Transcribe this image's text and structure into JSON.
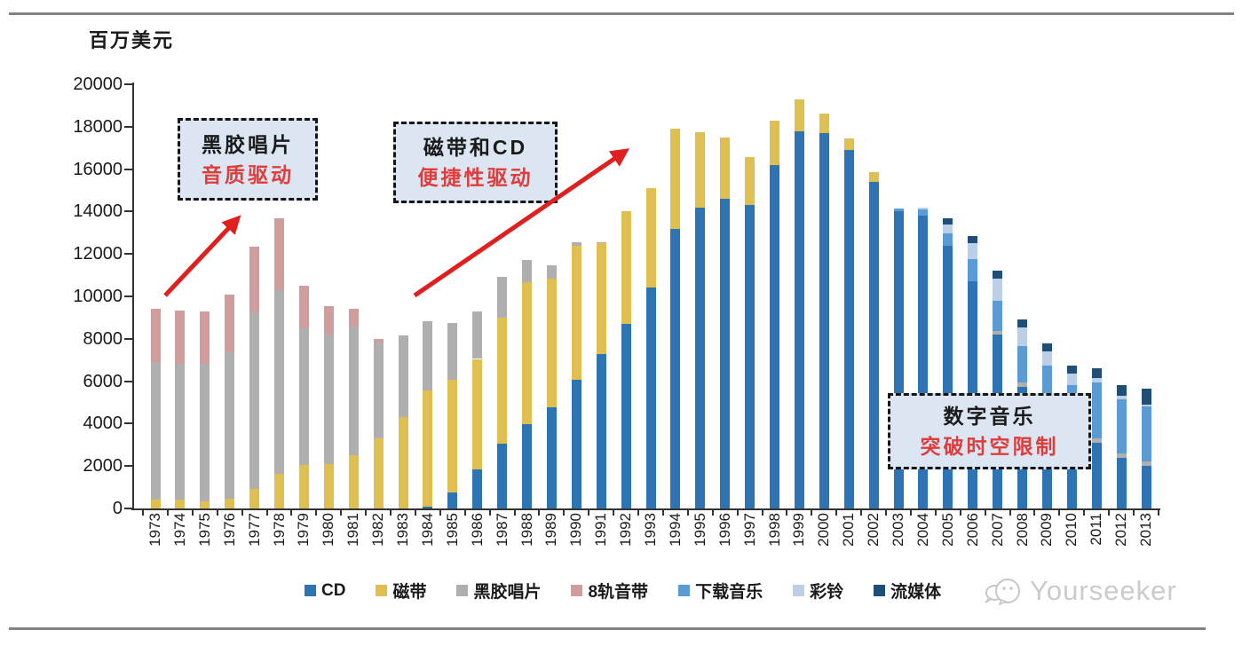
{
  "page": {
    "y_axis_unit": "百万美元",
    "watermark": "Yourseeker"
  },
  "annotations": [
    {
      "line1": "黑胶唱片",
      "line2": "音质驱动"
    },
    {
      "line1": "磁带和CD",
      "line2": "便捷性驱动"
    },
    {
      "line1": "数字音乐",
      "line2": "突破时空限制"
    }
  ],
  "colors": {
    "arrow_red": "#e01f1f",
    "annotation_fill": "#dce6f2",
    "annotation_text_red": "#e03c3c",
    "axis": "#333333",
    "rule_gray": "#828282",
    "watermark_gray": "#cbcbcb"
  },
  "chart_data": {
    "type": "bar",
    "stacked": true,
    "title": "",
    "xlabel": "",
    "ylabel": "百万美元",
    "ylim": [
      0,
      20000
    ],
    "yticks": [
      0,
      2000,
      4000,
      6000,
      8000,
      10000,
      12000,
      14000,
      16000,
      18000,
      20000
    ],
    "grid": false,
    "legend_position": "bottom",
    "categories": [
      1973,
      1974,
      1975,
      1976,
      1977,
      1978,
      1979,
      1980,
      1981,
      1982,
      1983,
      1984,
      1985,
      1986,
      1987,
      1988,
      1989,
      1990,
      1991,
      1992,
      1993,
      1994,
      1995,
      1996,
      1997,
      1998,
      1999,
      2000,
      2001,
      2002,
      2003,
      2004,
      2005,
      2006,
      2007,
      2008,
      2009,
      2010,
      2011,
      2012,
      2013
    ],
    "series": [
      {
        "name": "CD",
        "color": "#2E74B5",
        "values": [
          0,
          0,
          0,
          0,
          0,
          0,
          0,
          0,
          0,
          0,
          0,
          100,
          750,
          1850,
          3050,
          3970,
          4750,
          6050,
          7300,
          8700,
          10400,
          13200,
          14200,
          14600,
          14300,
          16200,
          17800,
          17700,
          16900,
          15400,
          14000,
          13800,
          12400,
          10700,
          8200,
          5750,
          4800,
          4000,
          3100,
          2400,
          2000
        ]
      },
      {
        "name": "磁带",
        "color": "#DFBF4F",
        "values": [
          400,
          400,
          350,
          450,
          900,
          1650,
          2050,
          2100,
          2500,
          3300,
          4300,
          5450,
          5300,
          5200,
          5950,
          6700,
          6100,
          6350,
          5200,
          5300,
          4700,
          4700,
          3550,
          2900,
          2250,
          2100,
          1500,
          900,
          550,
          450,
          0,
          0,
          0,
          0,
          0,
          0,
          0,
          0,
          0,
          0,
          0
        ]
      },
      {
        "name": "黑胶唱片",
        "color": "#AFAFAF",
        "values": [
          6500,
          6400,
          6450,
          6930,
          8350,
          8650,
          6450,
          6100,
          6080,
          4530,
          3840,
          3260,
          2700,
          2250,
          1900,
          1030,
          600,
          150,
          50,
          0,
          0,
          0,
          0,
          0,
          0,
          0,
          0,
          0,
          0,
          0,
          0,
          0,
          0,
          0,
          150,
          200,
          150,
          150,
          200,
          200,
          200
        ]
      },
      {
        "name": "8轨音带",
        "color": "#D09C9C",
        "values": [
          2500,
          2520,
          2490,
          2690,
          3100,
          3390,
          2000,
          1320,
          830,
          170,
          0,
          0,
          0,
          0,
          0,
          0,
          0,
          0,
          0,
          0,
          0,
          0,
          0,
          0,
          0,
          0,
          0,
          0,
          0,
          0,
          0,
          0,
          0,
          0,
          0,
          0,
          0,
          0,
          0,
          0,
          0
        ]
      },
      {
        "name": "下载音乐",
        "color": "#5B9BD5",
        "values": [
          0,
          0,
          0,
          0,
          0,
          0,
          0,
          0,
          0,
          0,
          0,
          0,
          0,
          0,
          0,
          0,
          0,
          0,
          0,
          0,
          0,
          0,
          0,
          0,
          0,
          0,
          0,
          0,
          0,
          0,
          150,
          300,
          550,
          1050,
          1450,
          1700,
          1800,
          1650,
          2650,
          2550,
          2600
        ]
      },
      {
        "name": "彩铃",
        "color": "#BCCFE8",
        "values": [
          0,
          0,
          0,
          0,
          0,
          0,
          0,
          0,
          0,
          0,
          0,
          0,
          0,
          0,
          0,
          0,
          0,
          0,
          0,
          0,
          0,
          0,
          0,
          0,
          0,
          0,
          0,
          0,
          0,
          0,
          0,
          100,
          420,
          750,
          1050,
          900,
          650,
          550,
          200,
          150,
          100
        ]
      },
      {
        "name": "流媒体",
        "color": "#1F4E79",
        "values": [
          0,
          0,
          0,
          0,
          0,
          0,
          0,
          0,
          0,
          0,
          0,
          0,
          0,
          0,
          0,
          0,
          0,
          0,
          0,
          0,
          0,
          0,
          0,
          0,
          0,
          0,
          0,
          0,
          0,
          0,
          0,
          0,
          330,
          350,
          350,
          350,
          400,
          400,
          480,
          500,
          750
        ]
      }
    ]
  }
}
